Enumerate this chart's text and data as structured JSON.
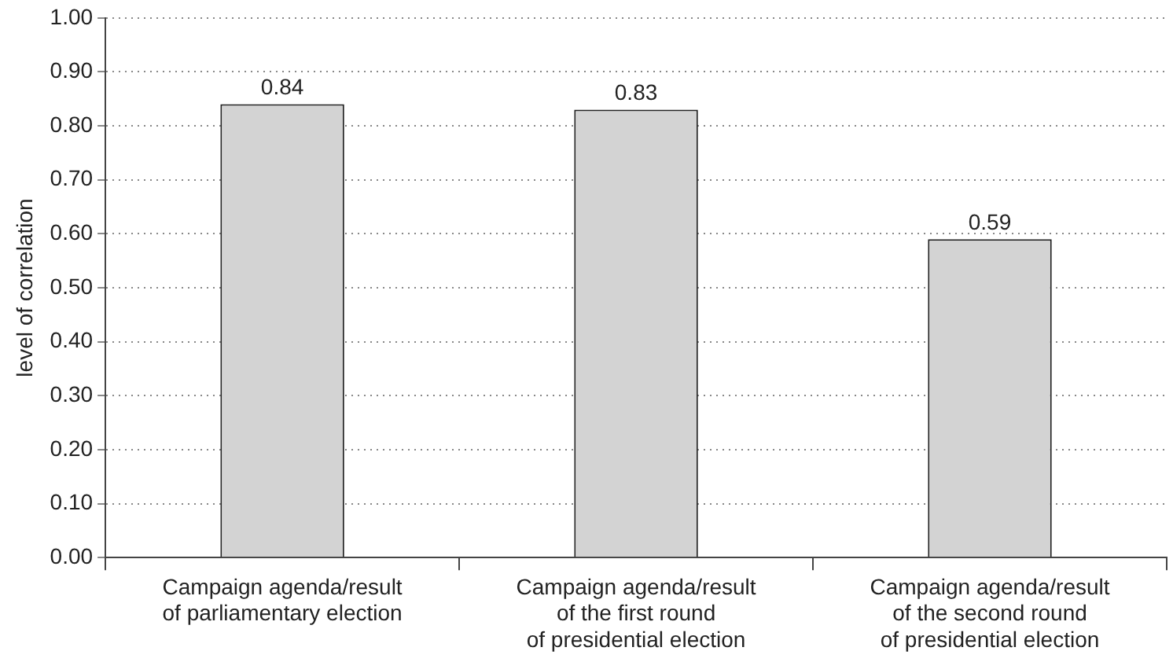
{
  "chart_data": {
    "type": "bar",
    "ylabel": "level of correlation",
    "categories": [
      "Campaign agenda/result\nof parliamentary election",
      "Campaign agenda/result\nof the first round\nof presidential election",
      "Campaign agenda/result\nof the second round\nof presidential election"
    ],
    "values": [
      0.84,
      0.83,
      0.59
    ],
    "value_labels": [
      "0.84",
      "0.83",
      "0.59"
    ],
    "color": "#d3d3d3",
    "ylim": [
      0,
      1
    ],
    "yticks": [
      {
        "value": 0,
        "label": "0.00"
      },
      {
        "value": 0.1,
        "label": "0.10"
      },
      {
        "value": 0.2,
        "label": "0.20"
      },
      {
        "value": 0.3,
        "label": "0.30"
      },
      {
        "value": 0.4,
        "label": "0.40"
      },
      {
        "value": 0.5,
        "label": "0.50"
      },
      {
        "value": 0.6,
        "label": "0.60"
      },
      {
        "value": 0.7,
        "label": "0.70"
      },
      {
        "value": 0.8,
        "label": "0.80"
      },
      {
        "value": 0.9,
        "label": "0.90"
      },
      {
        "value": 1,
        "label": "1.00"
      }
    ],
    "grid": "y",
    "legend": false
  }
}
